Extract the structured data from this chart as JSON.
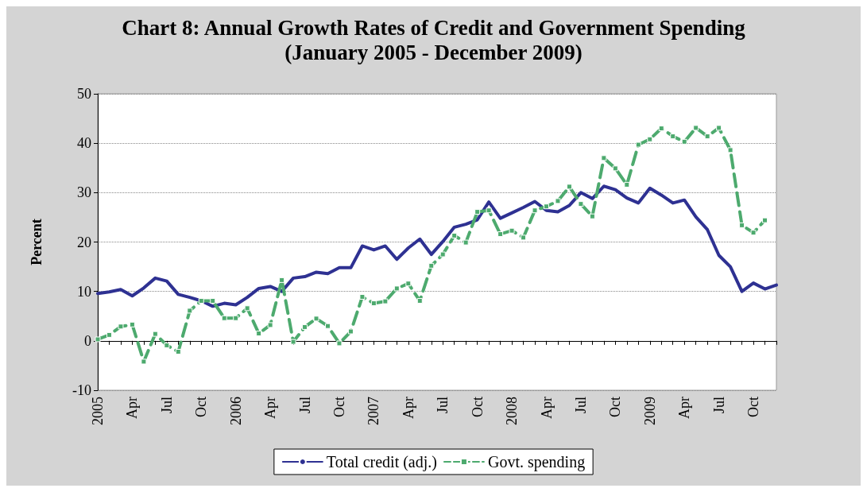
{
  "chart_data": {
    "type": "line",
    "title": "Chart 8: Annual Growth Rates of Credit and Government Spending",
    "subtitle": "(January 2005 - December 2009)",
    "ylabel": "Percent",
    "categories": [
      "2005",
      null,
      null,
      "Apr",
      null,
      null,
      "Jul",
      null,
      null,
      "Oct",
      null,
      null,
      "2006",
      null,
      null,
      "Apr",
      null,
      null,
      "Jul",
      null,
      null,
      "Oct",
      null,
      null,
      "2007",
      null,
      null,
      "Apr",
      null,
      null,
      "Jul",
      null,
      null,
      "Oct",
      null,
      null,
      "2008",
      null,
      null,
      "Apr",
      null,
      null,
      "Jul",
      null,
      null,
      "Oct",
      null,
      null,
      "2009",
      null,
      null,
      "Apr",
      null,
      null,
      "Jul",
      null,
      null,
      "Oct",
      null,
      null
    ],
    "series": [
      {
        "name": "Total credit (adj.)",
        "color": "#2e3192",
        "marker": "none",
        "line_style": "solid",
        "values": [
          9.6,
          9.9,
          10.4,
          9.1,
          10.7,
          12.7,
          12.1,
          9.4,
          8.8,
          8.1,
          7.0,
          7.6,
          7.3,
          8.8,
          10.6,
          11.0,
          10.0,
          12.7,
          13.0,
          13.9,
          13.6,
          14.8,
          14.8,
          19.2,
          18.4,
          19.2,
          16.5,
          18.8,
          20.6,
          17.5,
          20.1,
          23.0,
          23.6,
          24.5,
          28.1,
          24.8,
          25.9,
          27.0,
          28.2,
          26.4,
          26.1,
          27.4,
          30.0,
          28.8,
          31.3,
          30.6,
          28.9,
          27.9,
          30.9,
          29.5,
          27.9,
          28.5,
          25.1,
          22.5,
          17.3,
          15.0,
          10.0,
          11.7,
          10.5,
          11.3
        ]
      },
      {
        "name": "Govt. spending",
        "color": "#4daa6e",
        "marker": "square",
        "line_style": "dashed",
        "values": [
          0.3,
          1.2,
          2.9,
          3.3,
          -4.2,
          1.4,
          -0.9,
          -2.2,
          6.1,
          8.1,
          8.1,
          4.6,
          4.6,
          6.6,
          1.5,
          3.2,
          12.3,
          -0.2,
          2.8,
          4.5,
          3.0,
          -0.5,
          1.9,
          8.9,
          7.6,
          8.0,
          10.6,
          11.6,
          8.1,
          15.2,
          17.5,
          21.3,
          19.9,
          26.1,
          26.4,
          21.6,
          22.3,
          20.9,
          26.4,
          27.2,
          28.3,
          31.2,
          27.7,
          25.2,
          37.0,
          34.9,
          31.6,
          39.7,
          40.8,
          43.0,
          41.4,
          40.3,
          43.1,
          41.4,
          43.1,
          38.6,
          23.4,
          21.9,
          24.4,
          null
        ]
      }
    ],
    "ylim": [
      -10,
      50
    ],
    "yticks": [
      -10,
      0,
      10,
      20,
      30,
      40,
      50
    ],
    "grid": "y",
    "legend": "bottom"
  }
}
